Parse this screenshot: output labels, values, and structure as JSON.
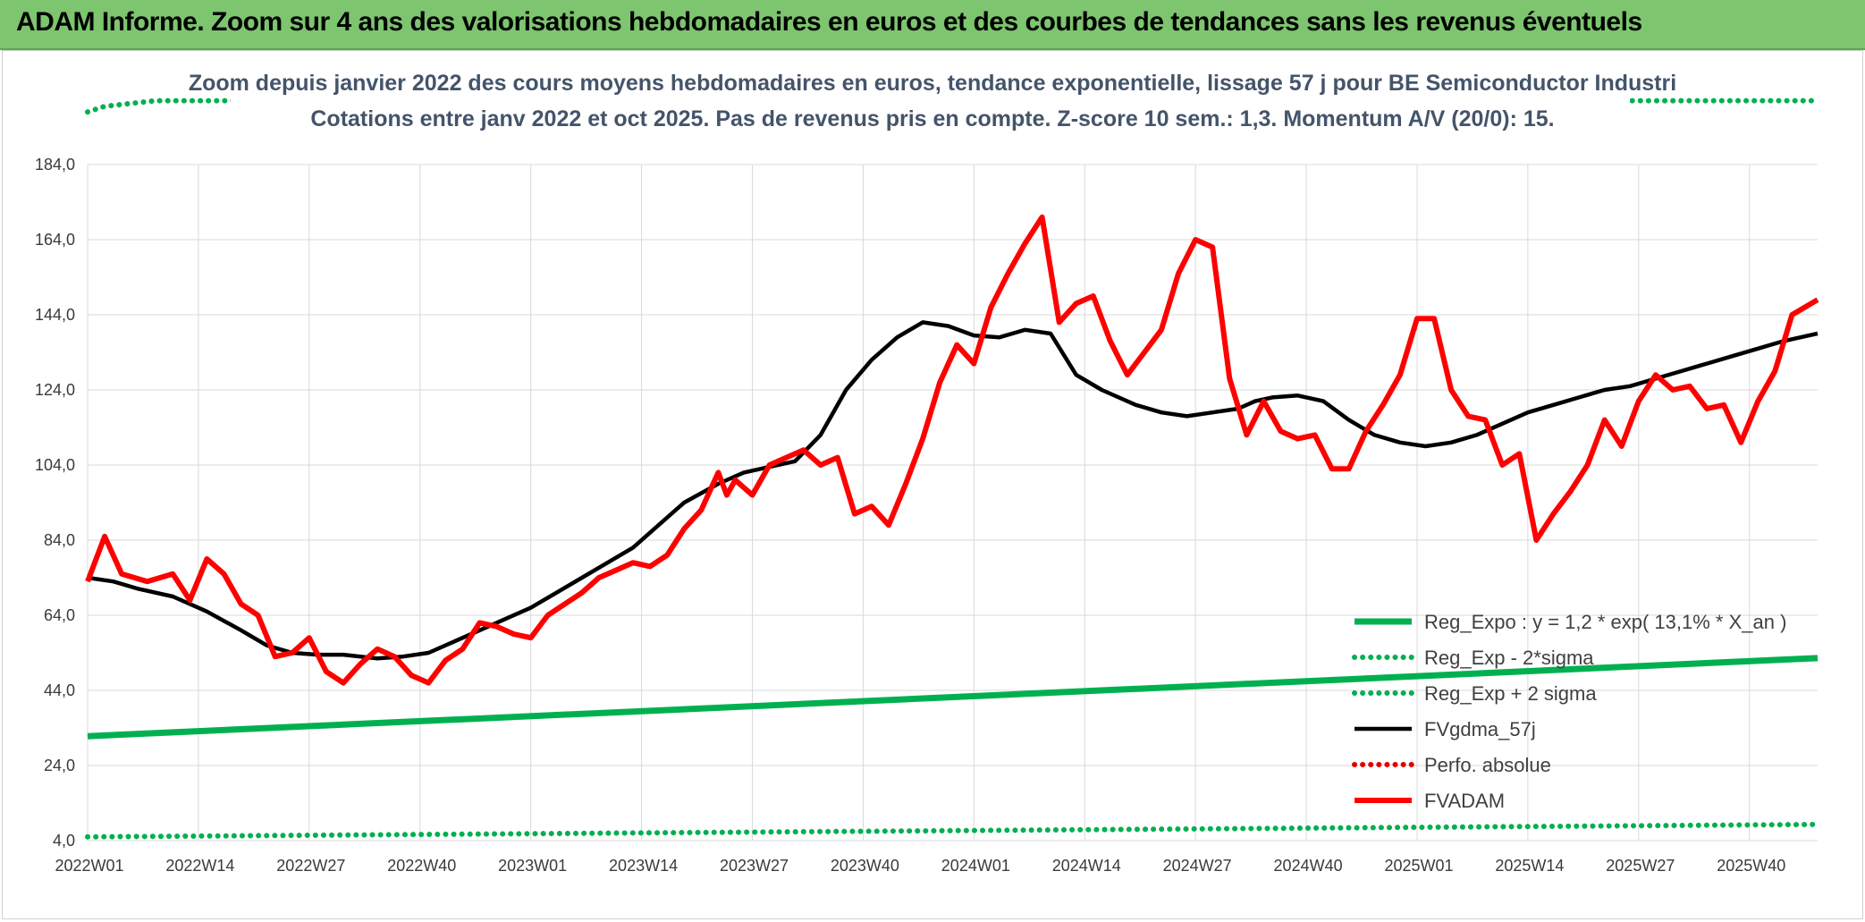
{
  "header": {
    "title": "ADAM Informe. Zoom sur 4 ans des valorisations hebdomadaires en euros et des courbes de tendances sans les revenus éventuels"
  },
  "chart_data": {
    "type": "line",
    "title": "Zoom depuis janvier 2022 des cours moyens hebdomadaires en euros, tendance exponentielle, lissage 57 j pour BE Semiconductor Industri",
    "subtitle": "Cotations entre janv 2022 et oct 2025. Pas de revenus pris en compte. Z-score 10 sem.: 1,3. Momentum A/V (20/0): 15.",
    "ylim": [
      4,
      184
    ],
    "y_ticks": [
      "4,0",
      "24,0",
      "44,0",
      "64,0",
      "84,0",
      "104,0",
      "124,0",
      "144,0",
      "164,0",
      "184,0"
    ],
    "x_ticks": [
      "2022W01",
      "2022W14",
      "2022W27",
      "2022W40",
      "2023W01",
      "2023W14",
      "2023W27",
      "2023W40",
      "2024W01",
      "2024W14",
      "2024W27",
      "2024W40",
      "2025W01",
      "2025W14",
      "2025W27",
      "2025W40"
    ],
    "grid": true,
    "legend_position": "bottom-right",
    "series": [
      {
        "name": "Reg_Expo : y = 1,2 * exp( 13,1% *  X_an )",
        "color": "#00b050",
        "style": "solid-thick",
        "x": [
          0,
          203
        ],
        "values": [
          31.8,
          52.6
        ]
      },
      {
        "name": "Reg_Exp - 2*sigma",
        "color": "#00b050",
        "style": "dotted",
        "x": [
          0,
          203
        ],
        "values": [
          5.0,
          8.3
        ]
      },
      {
        "name": "Reg_Exp + 2 sigma",
        "color": "#00b050",
        "style": "dotted",
        "x": [
          0,
          2,
          4,
          8,
          15,
          166,
          184,
          203
        ],
        "values": [
          198,
          199.5,
          200,
          201,
          201,
          201,
          201,
          201
        ]
      },
      {
        "name": "FVgdma_57j",
        "color": "#000000",
        "style": "solid",
        "x": [
          0,
          3,
          6,
          10,
          14,
          18,
          21,
          24,
          27,
          30,
          34,
          37,
          40,
          43,
          46,
          49,
          52,
          55,
          58,
          61,
          64,
          67,
          70,
          74,
          77,
          80,
          83,
          86,
          89,
          92,
          95,
          98,
          101,
          104,
          107,
          110,
          113,
          116,
          119,
          123,
          126,
          129,
          132,
          135,
          137,
          139,
          142,
          145,
          148,
          151,
          154,
          157,
          160,
          163,
          166,
          169,
          172,
          175,
          178,
          181,
          184,
          187,
          190,
          193,
          196,
          199,
          203
        ],
        "values": [
          74,
          73,
          71,
          69,
          65,
          60,
          56,
          54,
          53.5,
          53.5,
          52.5,
          53,
          54,
          57,
          60,
          63,
          66,
          70,
          74,
          78,
          82,
          88,
          94,
          99,
          102,
          103.5,
          105,
          112,
          124,
          132,
          138,
          142,
          141,
          138.5,
          138,
          140,
          139,
          128,
          124,
          120,
          118,
          117,
          118,
          119,
          121,
          122,
          122.5,
          121,
          116,
          112,
          110,
          109,
          110,
          112,
          115,
          118,
          120,
          122,
          124,
          125,
          127,
          129,
          131,
          133,
          135,
          137,
          139
        ]
      },
      {
        "name": "Perfo. absolue",
        "color": "#e00000",
        "style": "dotted",
        "x": [],
        "values": []
      },
      {
        "name": "FVADAM",
        "color": "#ff0000",
        "style": "solid-thick",
        "x": [
          0,
          2,
          4,
          7,
          10,
          12,
          14,
          16,
          18,
          20,
          22,
          24,
          26,
          28,
          30,
          32,
          34,
          36,
          38,
          40,
          42,
          44,
          46,
          48,
          50,
          52,
          54,
          56,
          58,
          60,
          62,
          64,
          66,
          68,
          70,
          72,
          74,
          75,
          76,
          78,
          80,
          82,
          84,
          86,
          88,
          90,
          92,
          94,
          96,
          98,
          100,
          102,
          104,
          106,
          108,
          110,
          112,
          114,
          116,
          118,
          120,
          122,
          124,
          126,
          128,
          130,
          132,
          134,
          136,
          138,
          140,
          142,
          144,
          146,
          148,
          150,
          152,
          154,
          156,
          158,
          160,
          162,
          164,
          166,
          168,
          170,
          172,
          174,
          176,
          178,
          180,
          182,
          184,
          186,
          188,
          190,
          192,
          194,
          196,
          198,
          200,
          203
        ],
        "values": [
          73,
          85,
          75,
          73,
          75,
          68,
          79,
          75,
          67,
          64,
          53,
          54,
          58,
          49,
          46,
          51,
          55,
          53,
          48,
          46,
          52,
          55,
          62,
          61,
          59,
          58,
          64,
          67,
          70,
          74,
          76,
          78,
          77,
          80,
          87,
          92,
          102,
          96,
          100,
          96,
          104,
          106,
          108,
          104,
          106,
          91,
          93,
          88,
          99,
          111,
          126,
          136,
          131,
          146,
          155,
          163,
          170,
          142,
          147,
          149,
          137,
          128,
          134,
          140,
          155,
          164,
          162,
          127,
          112,
          121,
          113,
          111,
          112,
          103,
          103,
          113,
          120,
          128,
          143,
          143,
          124,
          117,
          116,
          104,
          107,
          84,
          91,
          97,
          104,
          116,
          109,
          121,
          128,
          124,
          125,
          119,
          120,
          110,
          121,
          129,
          144,
          148
        ]
      }
    ]
  }
}
